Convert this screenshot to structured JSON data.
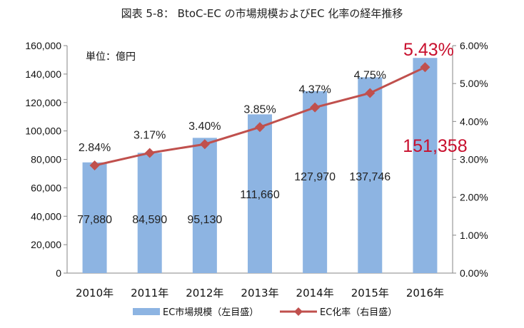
{
  "chart_data": {
    "type": "bar+line",
    "title": "図表 5-8： BtoC-EC の市場規模およびEC 化率の経年推移",
    "unit_note": "単位：億円",
    "categories": [
      "2010年",
      "2011年",
      "2012年",
      "2013年",
      "2014年",
      "2015年",
      "2016年"
    ],
    "series": [
      {
        "name": "EC市場規模（左目盛）",
        "type": "bar",
        "axis": "left",
        "values": [
          77880,
          84590,
          95130,
          111660,
          127970,
          137746,
          151358
        ],
        "labels": [
          "77,880",
          "84,590",
          "95,130",
          "111,660",
          "127,970",
          "137,746",
          "151,358"
        ],
        "color": "#8db4e2"
      },
      {
        "name": "EC化率（右目盛）",
        "type": "line",
        "axis": "right",
        "values": [
          2.84,
          3.17,
          3.4,
          3.85,
          4.37,
          4.75,
          5.43
        ],
        "labels": [
          "2.84%",
          "3.17%",
          "3.40%",
          "3.85%",
          "4.37%",
          "4.75%",
          "5.43%"
        ],
        "color": "#c0504d"
      }
    ],
    "y_left": {
      "range": [
        0,
        160000
      ],
      "ticks": [
        "0",
        "20,000",
        "40,000",
        "60,000",
        "80,000",
        "100,000",
        "120,000",
        "140,000",
        "160,000"
      ]
    },
    "y_right": {
      "range": [
        0,
        6
      ],
      "ticks": [
        "0.00%",
        "1.00%",
        "2.00%",
        "3.00%",
        "4.00%",
        "5.00%",
        "6.00%"
      ]
    },
    "highlight_color": "#c8102e",
    "grid": false,
    "legend_position": "bottom"
  }
}
